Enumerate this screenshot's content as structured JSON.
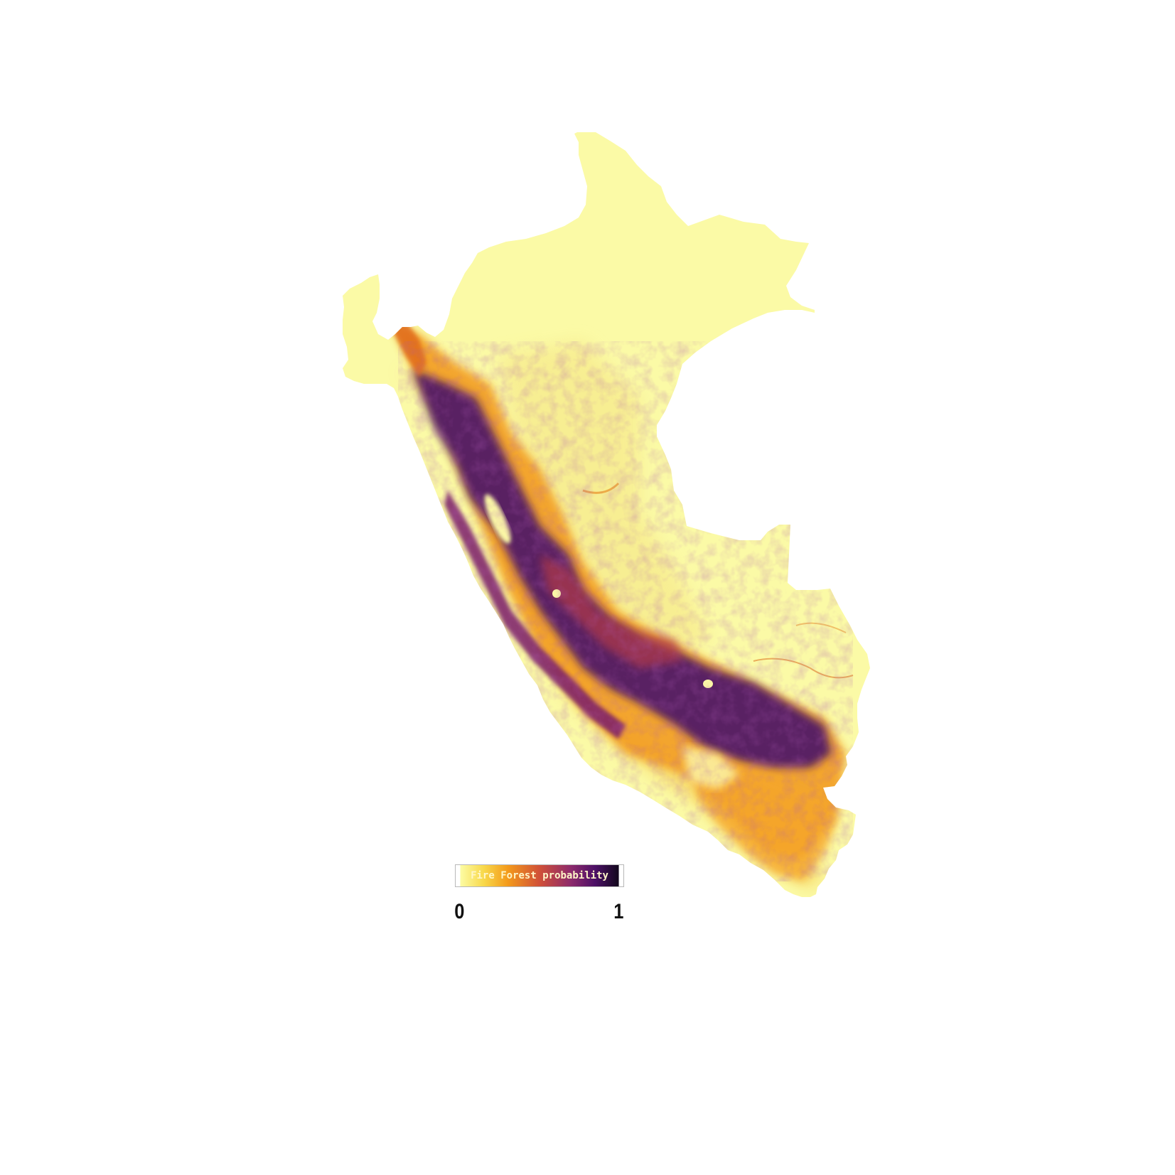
{
  "legend": {
    "title": "Fire Forest probability",
    "min_label": "0",
    "max_label": "1",
    "min_value": 0,
    "max_value": 1,
    "colormap": "inferno-reversed",
    "colors": {
      "low": "#fcfca4",
      "low_mid": "#f8c843",
      "mid": "#f28a1d",
      "mid_high": "#c0405a",
      "high": "#6a1a72",
      "max": "#1a0a2e"
    }
  }
}
